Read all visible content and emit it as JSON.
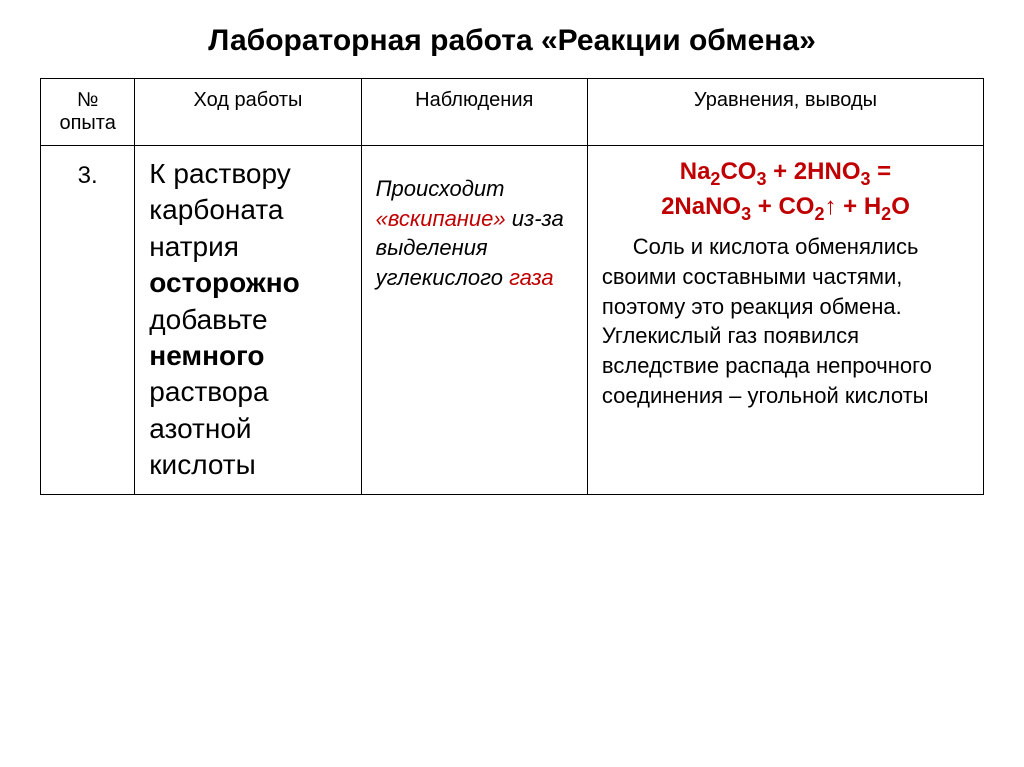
{
  "title": "Лабораторная работа «Реакции обмена»",
  "headers": {
    "num": "№ опыта",
    "procedure": "Ход работы",
    "observation": "Наблюдения",
    "conclusion": "Уравнения, выводы"
  },
  "row": {
    "num": "3.",
    "procedure": {
      "part1": "К раствору карбоната натрия ",
      "bold1": "осторожно",
      "part2": " добавьте ",
      "bold2": "немного",
      "part3": " раствора азотной кислоты"
    },
    "observation": {
      "part1": "Происходит ",
      "red1": "«вскипание»",
      "part2": " из-за выделения углекислого ",
      "red2": "газа"
    },
    "equation": {
      "l1a": "Na",
      "l1b": "CO",
      "l1c": " + 2HNO",
      "l1d": " =",
      "l2a": "2NaNO",
      "l2b": " + CO",
      "l2c": "↑ + H",
      "l2d": "O",
      "s2": "2",
      "s3": "3"
    },
    "conclusion": "Соль и кислота обменялись своими составными частями, поэтому это реакция обмена. Углекислый газ появился вследствие распада непрочного соединения – угольной кислоты"
  },
  "colors": {
    "text": "#000000",
    "accent": "#c00000",
    "border": "#000000",
    "background": "#ffffff"
  }
}
